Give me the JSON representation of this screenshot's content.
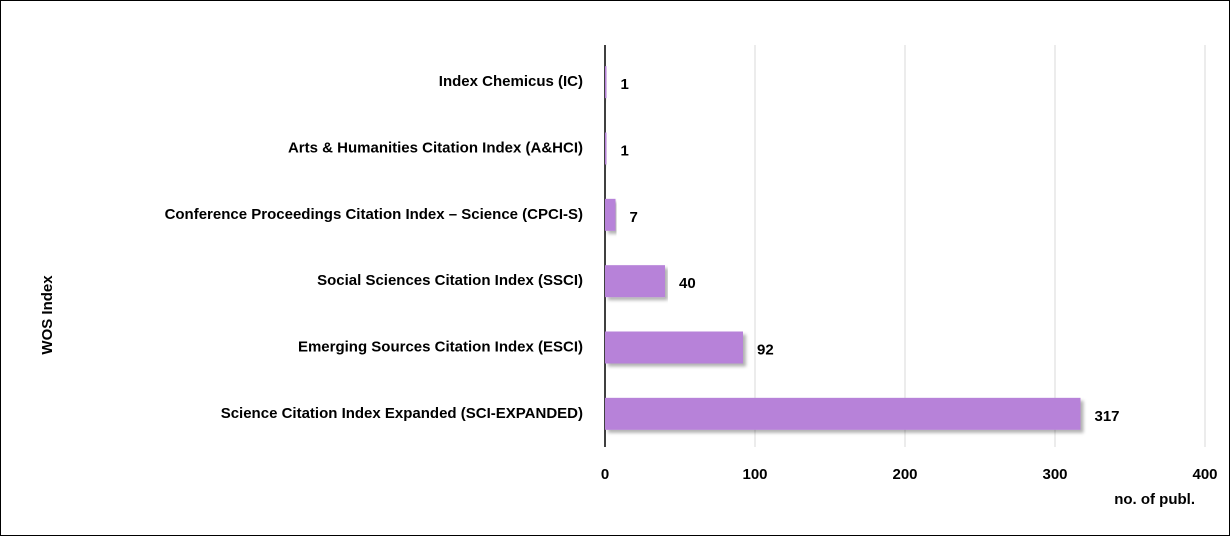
{
  "chart_data": {
    "type": "bar",
    "orientation": "horizontal",
    "x_label": "no. of publ.",
    "y_label": "WOS Index",
    "categories": [
      "Index Chemicus (IC)",
      "Arts & Humanities Citation Index (A&HCI)",
      "Conference Proceedings Citation Index – Science (CPCI-S)",
      "Social Sciences Citation Index (SSCI)",
      "Emerging Sources Citation Index (ESCI)",
      "Science Citation Index Expanded (SCI-EXPANDED)"
    ],
    "values": [
      1,
      1,
      7,
      40,
      92,
      317
    ],
    "color": "#b782d9",
    "xlim": [
      0,
      400
    ],
    "xticks": [
      0,
      100,
      200,
      300,
      400
    ],
    "grid": true
  }
}
